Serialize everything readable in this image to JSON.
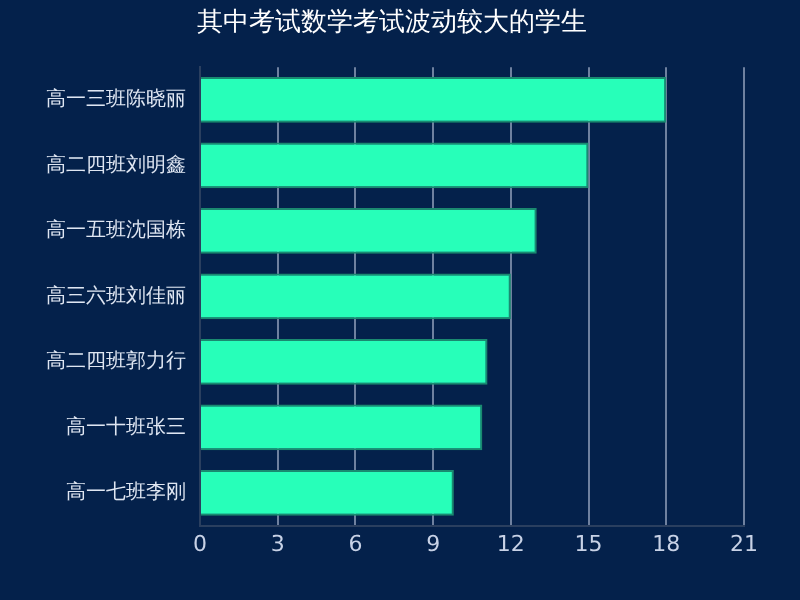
{
  "chart_data": {
    "type": "bar",
    "title": "其中考试数学考试波动较大的学生",
    "orientation": "horizontal",
    "categories": [
      "高一三班陈晓丽",
      "高二四班刘明鑫",
      "高一五班沈国栋",
      "高三六班刘佳丽",
      "高二四班郭力行",
      "高一十班张三",
      "高一七班李刚"
    ],
    "values": [
      18,
      15,
      13,
      12,
      11.1,
      10.9,
      9.8
    ],
    "color": "#27ffb9",
    "xlim": [
      0,
      21
    ],
    "xticks": [
      0,
      3,
      6,
      9,
      12,
      15,
      18,
      21
    ],
    "grid": "x",
    "legend": false
  }
}
